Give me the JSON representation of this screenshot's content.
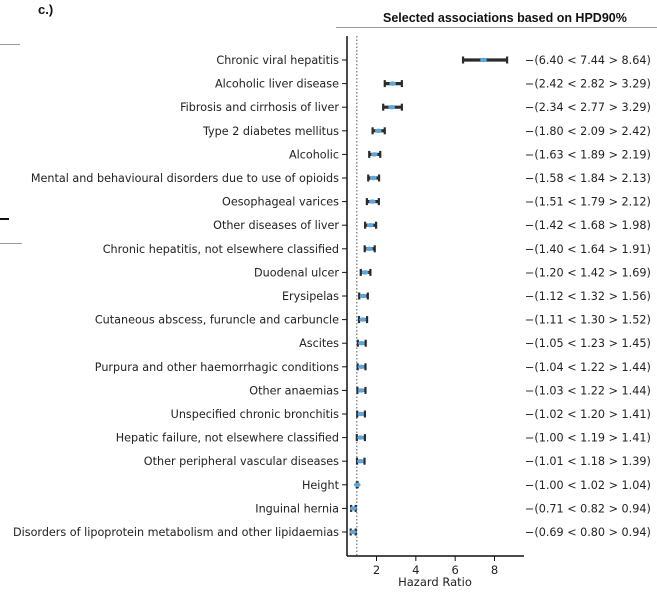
{
  "panel_label": "c.)",
  "chart_data": {
    "type": "forest",
    "title": "Selected associations based on HPD90%",
    "xlabel": "Hazard Ratio",
    "xlim": [
      0.5,
      9.5
    ],
    "xticks": [
      2,
      4,
      6,
      8
    ],
    "reference_line": 1,
    "colors": {
      "interval": "#2b2b2b",
      "point": "#5aa7e0"
    },
    "rows": [
      {
        "label": "Chronic viral hepatitis",
        "lo": 6.4,
        "hr": 7.44,
        "hi": 8.64,
        "text": "(6.40 < 7.44 > 8.64)"
      },
      {
        "label": "Alcoholic liver disease",
        "lo": 2.42,
        "hr": 2.82,
        "hi": 3.29,
        "text": "(2.42 < 2.82 > 3.29)"
      },
      {
        "label": "Fibrosis and cirrhosis of liver",
        "lo": 2.34,
        "hr": 2.77,
        "hi": 3.29,
        "text": "(2.34 < 2.77 > 3.29)"
      },
      {
        "label": "Type 2 diabetes mellitus",
        "lo": 1.8,
        "hr": 2.09,
        "hi": 2.42,
        "text": "(1.80 < 2.09 > 2.42)"
      },
      {
        "label": "Alcoholic",
        "lo": 1.63,
        "hr": 1.89,
        "hi": 2.19,
        "text": "(1.63 < 1.89 > 2.19)"
      },
      {
        "label": "Mental and behavioural disorders due to use of opioids",
        "lo": 1.58,
        "hr": 1.84,
        "hi": 2.13,
        "text": "(1.58 < 1.84 > 2.13)"
      },
      {
        "label": "Oesophageal varices",
        "lo": 1.51,
        "hr": 1.79,
        "hi": 2.12,
        "text": "(1.51 < 1.79 > 2.12)"
      },
      {
        "label": "Other diseases of liver",
        "lo": 1.42,
        "hr": 1.68,
        "hi": 1.98,
        "text": "(1.42 < 1.68 > 1.98)"
      },
      {
        "label": "Chronic hepatitis, not elsewhere classified",
        "lo": 1.4,
        "hr": 1.64,
        "hi": 1.91,
        "text": "(1.40 < 1.64 > 1.91)"
      },
      {
        "label": "Duodenal ulcer",
        "lo": 1.2,
        "hr": 1.42,
        "hi": 1.69,
        "text": "(1.20 < 1.42 > 1.69)"
      },
      {
        "label": "Erysipelas",
        "lo": 1.12,
        "hr": 1.32,
        "hi": 1.56,
        "text": "(1.12 < 1.32 > 1.56)"
      },
      {
        "label": "Cutaneous abscess, furuncle and carbuncle",
        "lo": 1.11,
        "hr": 1.3,
        "hi": 1.52,
        "text": "(1.11 < 1.30 > 1.52)"
      },
      {
        "label": "Ascites",
        "lo": 1.05,
        "hr": 1.23,
        "hi": 1.45,
        "text": "(1.05 < 1.23 > 1.45)"
      },
      {
        "label": "Purpura and other haemorrhagic conditions",
        "lo": 1.04,
        "hr": 1.22,
        "hi": 1.44,
        "text": "(1.04 < 1.22 > 1.44)"
      },
      {
        "label": "Other anaemias",
        "lo": 1.03,
        "hr": 1.22,
        "hi": 1.44,
        "text": "(1.03 < 1.22 > 1.44)"
      },
      {
        "label": "Unspecified chronic bronchitis",
        "lo": 1.02,
        "hr": 1.2,
        "hi": 1.41,
        "text": "(1.02 < 1.20 > 1.41)"
      },
      {
        "label": "Hepatic failure, not elsewhere classified",
        "lo": 1.0,
        "hr": 1.19,
        "hi": 1.41,
        "text": "(1.00 < 1.19 > 1.41)"
      },
      {
        "label": "Other peripheral vascular diseases",
        "lo": 1.01,
        "hr": 1.18,
        "hi": 1.39,
        "text": "(1.01 < 1.18 > 1.39)"
      },
      {
        "label": "Height",
        "lo": 1.0,
        "hr": 1.02,
        "hi": 1.04,
        "text": "(1.00 < 1.02 > 1.04)"
      },
      {
        "label": "Inguinal hernia",
        "lo": 0.71,
        "hr": 0.82,
        "hi": 0.94,
        "text": "(0.71 < 0.82 > 0.94)"
      },
      {
        "label": "Disorders of lipoprotein metabolism and other lipidaemias",
        "lo": 0.69,
        "hr": 0.8,
        "hi": 0.94,
        "text": "(0.69 < 0.80 > 0.94)"
      }
    ]
  }
}
